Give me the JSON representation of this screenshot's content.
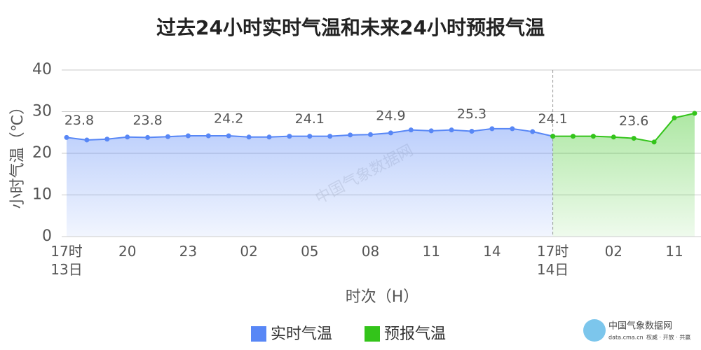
{
  "chart_data": {
    "type": "line",
    "title": "过去24小时实时气温和未来24小时预报气温",
    "x_label": "时次（H）",
    "y_label": "小时气温（℃）",
    "categories": [
      "17时\n13日",
      null,
      null,
      "20",
      null,
      null,
      "23",
      null,
      null,
      "02",
      null,
      null,
      "05",
      null,
      null,
      "08",
      null,
      null,
      "11",
      null,
      null,
      "14",
      null,
      null,
      "17时\n14日",
      null,
      null,
      "02",
      null,
      null,
      "11",
      null
    ],
    "series": [
      {
        "name": "实时气温",
        "color": "#5887f6",
        "values": [
          23.8,
          23.2,
          23.4,
          23.9,
          23.8,
          24.0,
          24.2,
          24.2,
          24.2,
          23.9,
          23.9,
          24.1,
          24.1,
          24.1,
          24.4,
          24.5,
          24.9,
          25.6,
          25.4,
          25.6,
          25.3,
          25.9,
          25.9,
          25.2,
          24.1,
          null,
          null,
          null,
          null,
          null,
          null,
          null
        ],
        "value_labels": [
          "23.8",
          null,
          null,
          null,
          "23.8",
          null,
          null,
          null,
          "24.2",
          null,
          null,
          null,
          "24.1",
          null,
          null,
          null,
          "24.9",
          null,
          null,
          null,
          "25.3",
          null,
          null,
          null,
          "24.1",
          null,
          null,
          null,
          null,
          null,
          null,
          null
        ]
      },
      {
        "name": "预报气温",
        "color": "#33c41a",
        "values": [
          null,
          null,
          null,
          null,
          null,
          null,
          null,
          null,
          null,
          null,
          null,
          null,
          null,
          null,
          null,
          null,
          null,
          null,
          null,
          null,
          null,
          null,
          null,
          null,
          24.1,
          24.1,
          24.1,
          23.9,
          23.6,
          22.7,
          28.5,
          29.6
        ],
        "value_labels": [
          null,
          null,
          null,
          null,
          null,
          null,
          null,
          null,
          null,
          null,
          null,
          null,
          null,
          null,
          null,
          null,
          null,
          null,
          null,
          null,
          null,
          null,
          null,
          null,
          null,
          null,
          null,
          null,
          "23.6",
          null,
          null,
          null
        ]
      }
    ],
    "ylim": [
      0,
      40
    ],
    "yticks": [
      0,
      10,
      20,
      30,
      40
    ],
    "grid": true,
    "legend": "bottom",
    "branding": {
      "name": "中国气象数据网",
      "url": "data.cma.cn",
      "slogan": "权威 · 开放 · 共赢"
    }
  }
}
